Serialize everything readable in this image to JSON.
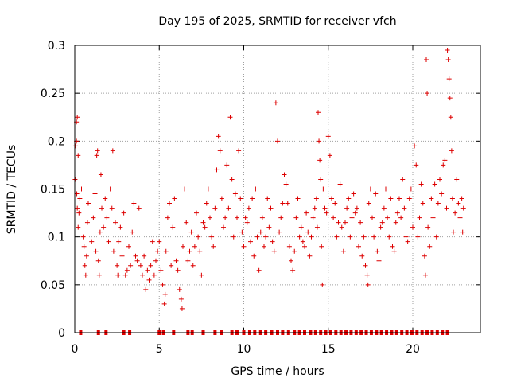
{
  "chart_data": {
    "type": "scatter",
    "title": "Day 195 of 2025, SRMTID for receiver vfch",
    "xlabel": "GPS time / hours",
    "ylabel": "SRMTID / TECUs",
    "xlim": [
      0,
      24
    ],
    "ylim": [
      0,
      0.3
    ],
    "x_ticks": [
      0,
      5,
      10,
      15,
      20
    ],
    "x_tick_labels": [
      "0",
      "5",
      "10",
      "15",
      "20"
    ],
    "y_ticks": [
      0,
      0.05,
      0.1,
      0.15,
      0.2,
      0.25,
      0.3
    ],
    "y_tick_labels": [
      "0",
      "0.05",
      "0.1",
      "0.15",
      "0.2",
      "0.25",
      "0.3"
    ],
    "grid": true,
    "marker": "+",
    "series": [
      {
        "name": "SRMTID",
        "color": "#dd0000",
        "points": [
          [
            0.02,
            0.16
          ],
          [
            0.05,
            0.195
          ],
          [
            0.1,
            0.22
          ],
          [
            0.12,
            0.145
          ],
          [
            0.15,
            0.13
          ],
          [
            0.2,
            0.11
          ],
          [
            0.25,
            0.125
          ],
          [
            0.3,
            0.14
          ],
          [
            0.1,
            0.2
          ],
          [
            0.15,
            0.225
          ],
          [
            0.2,
            0.185
          ],
          [
            0.4,
            0.15
          ],
          [
            0.5,
            0.1
          ],
          [
            0.55,
            0.09
          ],
          [
            0.6,
            0.07
          ],
          [
            0.65,
            0.06
          ],
          [
            0.7,
            0.08
          ],
          [
            0.75,
            0.115
          ],
          [
            0.8,
            0.135
          ],
          [
            1.0,
            0.095
          ],
          [
            1.1,
            0.12
          ],
          [
            1.2,
            0.145
          ],
          [
            1.25,
            0.085
          ],
          [
            1.3,
            0.185
          ],
          [
            1.35,
            0.19
          ],
          [
            1.4,
            0.075
          ],
          [
            1.45,
            0.06
          ],
          [
            1.5,
            0.105
          ],
          [
            1.55,
            0.165
          ],
          [
            1.6,
            0.13
          ],
          [
            1.7,
            0.11
          ],
          [
            1.8,
            0.14
          ],
          [
            1.9,
            0.12
          ],
          [
            2.0,
            0.095
          ],
          [
            2.1,
            0.15
          ],
          [
            2.2,
            0.13
          ],
          [
            2.25,
            0.19
          ],
          [
            2.3,
            0.085
          ],
          [
            2.4,
            0.115
          ],
          [
            2.5,
            0.07
          ],
          [
            2.55,
            0.06
          ],
          [
            2.6,
            0.095
          ],
          [
            2.7,
            0.11
          ],
          [
            2.8,
            0.08
          ],
          [
            2.9,
            0.125
          ],
          [
            3.0,
            0.06
          ],
          [
            3.1,
            0.065
          ],
          [
            3.2,
            0.09
          ],
          [
            3.3,
            0.07
          ],
          [
            3.4,
            0.105
          ],
          [
            3.5,
            0.135
          ],
          [
            3.6,
            0.08
          ],
          [
            3.7,
            0.075
          ],
          [
            3.8,
            0.13
          ],
          [
            3.9,
            0.07
          ],
          [
            4.0,
            0.06
          ],
          [
            4.1,
            0.08
          ],
          [
            4.2,
            0.045
          ],
          [
            4.3,
            0.065
          ],
          [
            4.4,
            0.055
          ],
          [
            4.5,
            0.07
          ],
          [
            4.6,
            0.095
          ],
          [
            4.7,
            0.06
          ],
          [
            4.8,
            0.075
          ],
          [
            4.9,
            0.085
          ],
          [
            5.0,
            0.095
          ],
          [
            5.1,
            0.065
          ],
          [
            5.2,
            0.05
          ],
          [
            5.3,
            0.03
          ],
          [
            5.35,
            0.04
          ],
          [
            5.4,
            0.085
          ],
          [
            5.5,
            0.12
          ],
          [
            5.6,
            0.135
          ],
          [
            5.7,
            0.07
          ],
          [
            5.8,
            0.11
          ],
          [
            5.9,
            0.14
          ],
          [
            6.0,
            0.075
          ],
          [
            6.1,
            0.065
          ],
          [
            6.2,
            0.045
          ],
          [
            6.3,
            0.035
          ],
          [
            6.35,
            0.025
          ],
          [
            6.4,
            0.09
          ],
          [
            6.5,
            0.15
          ],
          [
            6.6,
            0.115
          ],
          [
            6.7,
            0.075
          ],
          [
            6.8,
            0.085
          ],
          [
            6.9,
            0.105
          ],
          [
            7.0,
            0.07
          ],
          [
            7.1,
            0.09
          ],
          [
            7.2,
            0.125
          ],
          [
            7.3,
            0.1
          ],
          [
            7.4,
            0.085
          ],
          [
            7.5,
            0.06
          ],
          [
            7.6,
            0.115
          ],
          [
            7.7,
            0.11
          ],
          [
            7.8,
            0.135
          ],
          [
            7.9,
            0.15
          ],
          [
            8.0,
            0.12
          ],
          [
            8.1,
            0.1
          ],
          [
            8.2,
            0.09
          ],
          [
            8.3,
            0.13
          ],
          [
            8.4,
            0.17
          ],
          [
            8.5,
            0.205
          ],
          [
            8.6,
            0.19
          ],
          [
            8.7,
            0.14
          ],
          [
            8.8,
            0.11
          ],
          [
            8.9,
            0.12
          ],
          [
            9.0,
            0.175
          ],
          [
            9.1,
            0.13
          ],
          [
            9.2,
            0.225
          ],
          [
            9.3,
            0.16
          ],
          [
            9.4,
            0.1
          ],
          [
            9.5,
            0.145
          ],
          [
            9.6,
            0.12
          ],
          [
            9.7,
            0.19
          ],
          [
            9.8,
            0.14
          ],
          [
            9.9,
            0.105
          ],
          [
            10.0,
            0.09
          ],
          [
            10.1,
            0.12
          ],
          [
            10.2,
            0.115
          ],
          [
            10.3,
            0.13
          ],
          [
            10.4,
            0.095
          ],
          [
            10.5,
            0.14
          ],
          [
            10.6,
            0.08
          ],
          [
            10.7,
            0.15
          ],
          [
            10.8,
            0.1
          ],
          [
            10.9,
            0.065
          ],
          [
            11.0,
            0.105
          ],
          [
            11.1,
            0.12
          ],
          [
            11.2,
            0.09
          ],
          [
            11.3,
            0.1
          ],
          [
            11.4,
            0.14
          ],
          [
            11.5,
            0.11
          ],
          [
            11.6,
            0.13
          ],
          [
            11.7,
            0.095
          ],
          [
            11.8,
            0.085
          ],
          [
            11.9,
            0.24
          ],
          [
            12.0,
            0.2
          ],
          [
            12.1,
            0.105
          ],
          [
            12.2,
            0.12
          ],
          [
            12.3,
            0.135
          ],
          [
            12.4,
            0.165
          ],
          [
            12.5,
            0.155
          ],
          [
            12.6,
            0.135
          ],
          [
            12.7,
            0.09
          ],
          [
            12.8,
            0.075
          ],
          [
            12.9,
            0.065
          ],
          [
            13.0,
            0.085
          ],
          [
            13.1,
            0.12
          ],
          [
            13.2,
            0.14
          ],
          [
            13.3,
            0.1
          ],
          [
            13.4,
            0.11
          ],
          [
            13.5,
            0.095
          ],
          [
            13.6,
            0.09
          ],
          [
            13.7,
            0.125
          ],
          [
            13.8,
            0.105
          ],
          [
            13.9,
            0.08
          ],
          [
            14.0,
            0.1
          ],
          [
            14.1,
            0.12
          ],
          [
            14.2,
            0.13
          ],
          [
            14.3,
            0.14
          ],
          [
            14.35,
            0.11
          ],
          [
            14.4,
            0.23
          ],
          [
            14.45,
            0.2
          ],
          [
            14.5,
            0.18
          ],
          [
            14.55,
            0.16
          ],
          [
            14.6,
            0.09
          ],
          [
            14.65,
            0.05
          ],
          [
            14.7,
            0.15
          ],
          [
            14.8,
            0.13
          ],
          [
            14.9,
            0.125
          ],
          [
            15.0,
            0.205
          ],
          [
            15.1,
            0.185
          ],
          [
            15.2,
            0.14
          ],
          [
            15.3,
            0.12
          ],
          [
            15.4,
            0.135
          ],
          [
            15.5,
            0.1
          ],
          [
            15.6,
            0.115
          ],
          [
            15.7,
            0.155
          ],
          [
            15.8,
            0.11
          ],
          [
            15.9,
            0.085
          ],
          [
            16.0,
            0.115
          ],
          [
            16.1,
            0.13
          ],
          [
            16.2,
            0.14
          ],
          [
            16.3,
            0.1
          ],
          [
            16.4,
            0.12
          ],
          [
            16.5,
            0.145
          ],
          [
            16.6,
            0.125
          ],
          [
            16.7,
            0.13
          ],
          [
            16.8,
            0.09
          ],
          [
            16.9,
            0.115
          ],
          [
            17.0,
            0.08
          ],
          [
            17.1,
            0.1
          ],
          [
            17.2,
            0.07
          ],
          [
            17.3,
            0.06
          ],
          [
            17.35,
            0.05
          ],
          [
            17.4,
            0.135
          ],
          [
            17.5,
            0.15
          ],
          [
            17.6,
            0.12
          ],
          [
            17.7,
            0.1
          ],
          [
            17.8,
            0.145
          ],
          [
            17.9,
            0.085
          ],
          [
            18.0,
            0.075
          ],
          [
            18.1,
            0.11
          ],
          [
            18.2,
            0.115
          ],
          [
            18.3,
            0.13
          ],
          [
            18.4,
            0.15
          ],
          [
            18.5,
            0.12
          ],
          [
            18.6,
            0.1
          ],
          [
            18.7,
            0.14
          ],
          [
            18.8,
            0.09
          ],
          [
            18.9,
            0.085
          ],
          [
            19.0,
            0.115
          ],
          [
            19.1,
            0.125
          ],
          [
            19.2,
            0.14
          ],
          [
            19.3,
            0.12
          ],
          [
            19.4,
            0.16
          ],
          [
            19.5,
            0.13
          ],
          [
            19.6,
            0.1
          ],
          [
            19.7,
            0.095
          ],
          [
            19.8,
            0.14
          ],
          [
            19.9,
            0.15
          ],
          [
            20.0,
            0.11
          ],
          [
            20.1,
            0.195
          ],
          [
            20.2,
            0.175
          ],
          [
            20.3,
            0.1
          ],
          [
            20.4,
            0.12
          ],
          [
            20.5,
            0.155
          ],
          [
            20.6,
            0.135
          ],
          [
            20.7,
            0.08
          ],
          [
            20.75,
            0.06
          ],
          [
            20.8,
            0.285
          ],
          [
            20.85,
            0.25
          ],
          [
            20.9,
            0.11
          ],
          [
            21.0,
            0.09
          ],
          [
            21.1,
            0.14
          ],
          [
            21.2,
            0.12
          ],
          [
            21.3,
            0.155
          ],
          [
            21.4,
            0.1
          ],
          [
            21.5,
            0.135
          ],
          [
            21.6,
            0.16
          ],
          [
            21.7,
            0.145
          ],
          [
            21.8,
            0.175
          ],
          [
            21.9,
            0.18
          ],
          [
            22.0,
            0.13
          ],
          [
            22.05,
            0.295
          ],
          [
            22.1,
            0.285
          ],
          [
            22.15,
            0.265
          ],
          [
            22.2,
            0.245
          ],
          [
            22.25,
            0.225
          ],
          [
            22.3,
            0.19
          ],
          [
            22.35,
            0.14
          ],
          [
            22.4,
            0.105
          ],
          [
            22.5,
            0.125
          ],
          [
            22.6,
            0.16
          ],
          [
            22.7,
            0.135
          ],
          [
            22.8,
            0.12
          ],
          [
            22.9,
            0.14
          ],
          [
            22.95,
            0.105
          ],
          [
            23.0,
            0.13
          ]
        ],
        "zero_points_x": [
          0.35,
          1.4,
          1.85,
          2.9,
          3.25,
          5.0,
          5.25,
          5.85,
          6.7,
          6.95,
          7.6,
          8.3,
          8.7,
          9.3,
          9.6,
          10.0,
          10.35,
          10.65,
          11.0,
          11.3,
          11.65,
          12.0,
          12.3,
          12.65,
          13.0,
          13.3,
          13.6,
          13.95,
          14.25,
          14.55,
          14.85,
          15.15,
          15.45,
          15.75,
          16.05,
          16.35,
          16.65,
          16.95,
          17.25,
          17.55,
          17.85,
          18.15,
          18.45,
          18.75,
          19.05,
          19.35,
          19.65,
          19.95,
          20.25,
          20.55,
          20.85,
          21.15,
          21.45,
          21.75,
          22.05
        ]
      }
    ]
  }
}
